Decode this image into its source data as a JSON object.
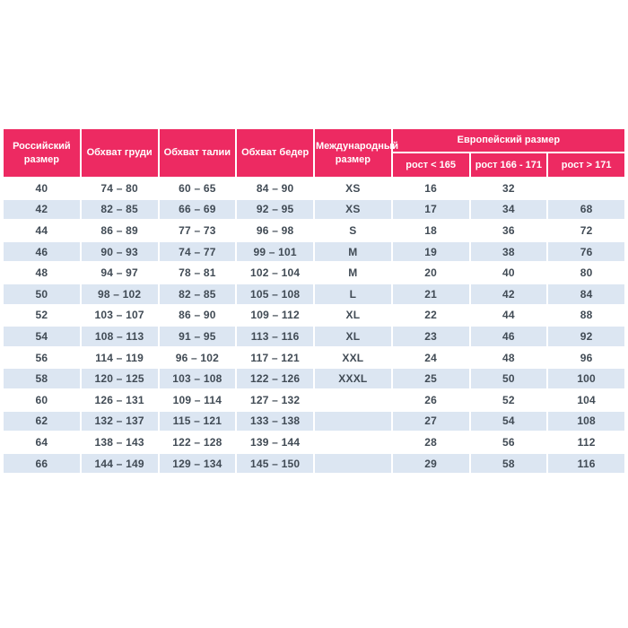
{
  "theme": {
    "page_bg": "#ffffff",
    "header_bg": "#ED2A62",
    "header_text": "#ffffff",
    "stripe_bg": "#DCE6F2",
    "row_bg": "#ffffff",
    "body_text": "#414B55"
  },
  "chart_data": {
    "type": "table",
    "title": "",
    "header": {
      "russian_size": "Российский размер",
      "chest": "Обхват груди",
      "waist": "Обхват талии",
      "hips": "Обхват бедер",
      "international": "Международный размер",
      "european_group": "Европейский размер",
      "height_lt": "рост < 165",
      "height_mid": "рост 166 - 171",
      "height_gt": "рост > 171"
    },
    "columns_order": [
      "Российский размер",
      "Обхват груди",
      "Обхват талии",
      "Обхват бедер",
      "Международный размер",
      "рост < 165",
      "рост 166 - 171",
      "рост > 171"
    ],
    "column_group": {
      "label": "Европейский размер",
      "spans": [
        "рост < 165",
        "рост 166 - 171",
        "рост > 171"
      ]
    },
    "rows": [
      [
        "40",
        "74 – 80",
        "60 – 65",
        "84 – 90",
        "XS",
        "16",
        "32",
        ""
      ],
      [
        "42",
        "82 – 85",
        "66 – 69",
        "92 – 95",
        "XS",
        "17",
        "34",
        "68"
      ],
      [
        "44",
        "86 – 89",
        "77 – 73",
        "96 – 98",
        "S",
        "18",
        "36",
        "72"
      ],
      [
        "46",
        "90 – 93",
        "74 – 77",
        "99 – 101",
        "M",
        "19",
        "38",
        "76"
      ],
      [
        "48",
        "94 – 97",
        "78 – 81",
        "102 – 104",
        "M",
        "20",
        "40",
        "80"
      ],
      [
        "50",
        "98 – 102",
        "82 – 85",
        "105 – 108",
        "L",
        "21",
        "42",
        "84"
      ],
      [
        "52",
        "103 – 107",
        "86 – 90",
        "109 – 112",
        "XL",
        "22",
        "44",
        "88"
      ],
      [
        "54",
        "108 – 113",
        "91 – 95",
        "113 – 116",
        "XL",
        "23",
        "46",
        "92"
      ],
      [
        "56",
        "114 – 119",
        "96 – 102",
        "117 – 121",
        "XXL",
        "24",
        "48",
        "96"
      ],
      [
        "58",
        "120 – 125",
        "103 – 108",
        "122 – 126",
        "XXXL",
        "25",
        "50",
        "100"
      ],
      [
        "60",
        "126 – 131",
        "109 – 114",
        "127 – 132",
        "",
        "26",
        "52",
        "104"
      ],
      [
        "62",
        "132 – 137",
        "115 – 121",
        "133 – 138",
        "",
        "27",
        "54",
        "108"
      ],
      [
        "64",
        "138 – 143",
        "122 – 128",
        "139 – 144",
        "",
        "28",
        "56",
        "112"
      ],
      [
        "66",
        "144 – 149",
        "129 – 134",
        "145 – 150",
        "",
        "29",
        "58",
        "116"
      ]
    ]
  }
}
